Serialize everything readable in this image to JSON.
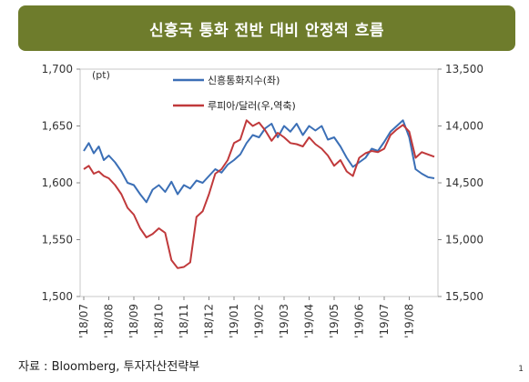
{
  "title": "신흥국 통화 전반 대비 안정적 흐름",
  "source": "자료 : Bloomberg, 투자자산전략부",
  "page_number": "1",
  "colors": {
    "title_bg": "#6e7c2c",
    "series_blue": "#3b6fb6",
    "series_red": "#c0393b"
  },
  "chart_data": {
    "type": "line",
    "left_unit": "(pt)",
    "left_axis": {
      "min": 1500,
      "max": 1700,
      "ticks": [
        "1,700",
        "1,650",
        "1,600",
        "1,550",
        "1,500"
      ],
      "tick_values": [
        1700,
        1650,
        1600,
        1550,
        1500
      ]
    },
    "right_axis": {
      "inverted": true,
      "min": 13500,
      "max": 15500,
      "ticks": [
        "13,500",
        "14,000",
        "14,500",
        "15,000",
        "15,500"
      ],
      "tick_values": [
        13500,
        14000,
        14500,
        15000,
        15500
      ]
    },
    "x_labels": [
      "'18/07",
      "'18/08",
      "'18/09",
      "'18/10",
      "'18/11",
      "'18/12",
      "'19/01",
      "'19/02",
      "'19/03",
      "'19/04",
      "'19/05",
      "'19/06",
      "'19/07",
      "'19/08"
    ],
    "x_range": [
      0,
      14
    ],
    "legend_position": "top",
    "grid": false,
    "series": [
      {
        "name": "신흥통화지수(좌)",
        "axis": "left",
        "color": "#3b6fb6",
        "x": [
          0,
          0.2,
          0.4,
          0.6,
          0.8,
          1,
          1.25,
          1.5,
          1.75,
          2,
          2.25,
          2.5,
          2.75,
          3,
          3.25,
          3.5,
          3.75,
          4,
          4.25,
          4.5,
          4.75,
          5,
          5.25,
          5.5,
          5.75,
          6,
          6.25,
          6.5,
          6.75,
          7,
          7.25,
          7.5,
          7.75,
          8,
          8.25,
          8.5,
          8.75,
          9,
          9.25,
          9.5,
          9.75,
          10,
          10.25,
          10.5,
          10.75,
          11,
          11.25,
          11.5,
          11.75,
          12,
          12.25,
          12.5,
          12.75,
          13,
          13.25,
          13.5,
          13.75,
          14
        ],
        "y": [
          1628,
          1635,
          1626,
          1632,
          1620,
          1624,
          1618,
          1610,
          1600,
          1598,
          1590,
          1583,
          1594,
          1598,
          1592,
          1601,
          1590,
          1598,
          1595,
          1602,
          1600,
          1606,
          1612,
          1609,
          1616,
          1620,
          1625,
          1635,
          1642,
          1640,
          1648,
          1652,
          1640,
          1650,
          1645,
          1652,
          1642,
          1650,
          1646,
          1650,
          1638,
          1640,
          1632,
          1622,
          1614,
          1618,
          1622,
          1630,
          1628,
          1636,
          1645,
          1650,
          1655,
          1640,
          1612,
          1608,
          1605,
          1604
        ]
      },
      {
        "name": "루피아/달러(우,역축)",
        "axis": "right",
        "color": "#c0393b",
        "x": [
          0,
          0.2,
          0.4,
          0.6,
          0.8,
          1,
          1.25,
          1.5,
          1.75,
          2,
          2.25,
          2.5,
          2.75,
          3,
          3.25,
          3.5,
          3.75,
          4,
          4.25,
          4.5,
          4.75,
          5,
          5.25,
          5.5,
          5.75,
          6,
          6.25,
          6.5,
          6.75,
          7,
          7.25,
          7.5,
          7.75,
          8,
          8.25,
          8.5,
          8.75,
          9,
          9.25,
          9.5,
          9.75,
          10,
          10.25,
          10.5,
          10.75,
          11,
          11.25,
          11.5,
          11.75,
          12,
          12.25,
          12.5,
          12.75,
          13,
          13.25,
          13.5,
          13.75,
          14
        ],
        "y": [
          14380,
          14350,
          14420,
          14400,
          14440,
          14460,
          14520,
          14600,
          14720,
          14780,
          14900,
          14980,
          14950,
          14900,
          14940,
          15180,
          15250,
          15240,
          15200,
          14800,
          14750,
          14600,
          14420,
          14380,
          14300,
          14150,
          14120,
          13950,
          14000,
          13970,
          14040,
          14130,
          14060,
          14100,
          14150,
          14160,
          14180,
          14100,
          14160,
          14200,
          14260,
          14350,
          14300,
          14400,
          14440,
          14280,
          14240,
          14220,
          14230,
          14200,
          14080,
          14030,
          13990,
          14050,
          14280,
          14230,
          14250,
          14270
        ]
      }
    ]
  }
}
